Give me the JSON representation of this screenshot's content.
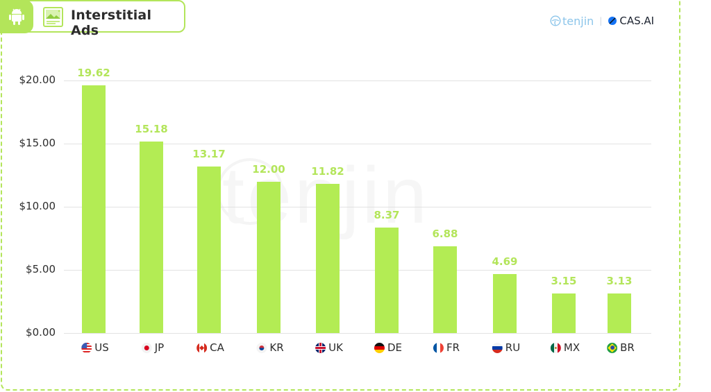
{
  "header": {
    "platform_icon": "android-icon",
    "format_icon": "image-ad-icon",
    "title": "Interstitial Ads"
  },
  "branding": {
    "tenjin_label": "tenjin",
    "separator": "|",
    "cas_label": "CAS.AI",
    "watermark": "tenjin"
  },
  "colors": {
    "accent": "#b3e55a",
    "bar": "#b3ec54",
    "gridline": "#e2e2e2",
    "text": "#2c2c2c"
  },
  "y_axis": {
    "ticks": [
      "$20.00",
      "$15.00",
      "$10.00",
      "$5.00",
      "$0.00"
    ]
  },
  "chart_data": {
    "type": "bar",
    "title": "Interstitial Ads",
    "xlabel": "",
    "ylabel": "",
    "categories": [
      "US",
      "JP",
      "CA",
      "KR",
      "UK",
      "DE",
      "FR",
      "RU",
      "MX",
      "BR"
    ],
    "values": [
      19.62,
      15.18,
      13.17,
      12.0,
      11.82,
      8.37,
      6.88,
      4.69,
      3.15,
      3.13
    ],
    "value_labels": [
      "19.62",
      "15.18",
      "13.17",
      "12.00",
      "11.82",
      "8.37",
      "6.88",
      "4.69",
      "3.15",
      "3.13"
    ],
    "ylim": [
      0,
      20
    ],
    "yticks": [
      0,
      5,
      10,
      15,
      20
    ],
    "ytick_format": "$0.00",
    "grid": true,
    "legend": null
  }
}
